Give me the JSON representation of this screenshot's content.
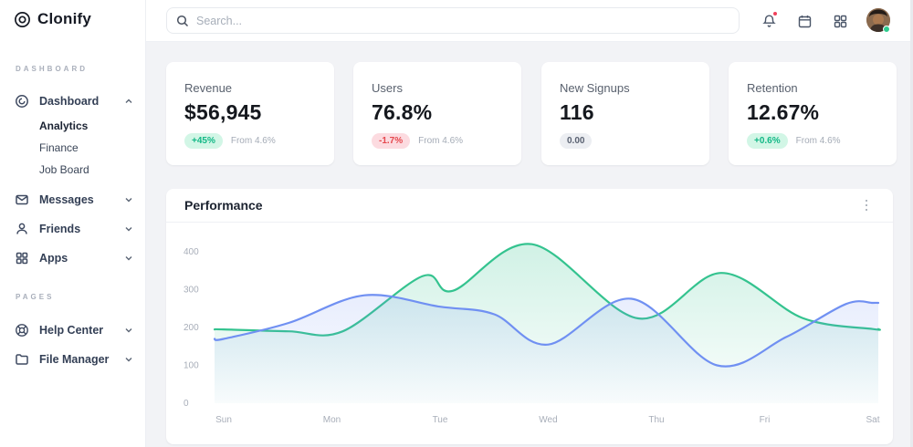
{
  "brand": {
    "name": "Clonify",
    "logo_icon": "clonify-logo-icon"
  },
  "topbar": {
    "search_placeholder": "Search...",
    "search_icon": "search-icon",
    "icons": [
      "bell-icon",
      "calendar-icon",
      "apps-grid-icon"
    ],
    "notification_dot_color": "#f0405a",
    "avatar_status_color": "#2ecc8f"
  },
  "sidebar": {
    "sections": [
      {
        "label": "DASHBOARD",
        "items": [
          {
            "label": "Dashboard",
            "icon": "dashboard-icon",
            "expanded": true,
            "children": [
              {
                "label": "Analytics",
                "active": true
              },
              {
                "label": "Finance",
                "active": false
              },
              {
                "label": "Job Board",
                "active": false
              }
            ]
          },
          {
            "label": "Messages",
            "icon": "messages-icon"
          },
          {
            "label": "Friends",
            "icon": "friends-icon"
          },
          {
            "label": "Apps",
            "icon": "apps-icon"
          }
        ]
      },
      {
        "label": "PAGES",
        "items": [
          {
            "label": "Help Center",
            "icon": "help-center-icon"
          },
          {
            "label": "File Manager",
            "icon": "folder-icon"
          }
        ]
      }
    ]
  },
  "cards": [
    {
      "title": "Revenue",
      "value": "$56,945",
      "badge": "+45%",
      "badge_type": "up",
      "note": "From 4.6%"
    },
    {
      "title": "Users",
      "value": "76.8%",
      "badge": "-1.7%",
      "badge_type": "down",
      "note": "From 4.6%"
    },
    {
      "title": "New Signups",
      "value": "116",
      "badge": "0.00",
      "badge_type": "neutral",
      "note": ""
    },
    {
      "title": "Retention",
      "value": "12.67%",
      "badge": "+0.6%",
      "badge_type": "up",
      "note": "From 4.6%"
    }
  ],
  "chart_data": {
    "type": "area",
    "title": "Performance",
    "x_labels": [
      "Sun",
      "Mon",
      "Tue",
      "Wed",
      "Thu",
      "Fri",
      "Sat"
    ],
    "y_ticks": [
      0,
      100,
      200,
      300,
      400
    ],
    "ylim": [
      0,
      400
    ],
    "grid": false,
    "legend": "none",
    "axis_label_color": "#a8aeb9",
    "series": [
      {
        "name": "green-series",
        "color": "#34c38f",
        "points": [
          [
            0,
            195
          ],
          [
            0.6,
            190
          ],
          [
            1.1,
            190
          ],
          [
            1.84,
            336
          ],
          [
            2.12,
            297
          ],
          [
            2.85,
            420
          ],
          [
            3.83,
            224
          ],
          [
            4.6,
            344
          ],
          [
            5.35,
            225
          ],
          [
            6,
            196
          ]
        ]
      },
      {
        "name": "blue-series",
        "color": "#7090f2",
        "points": [
          [
            0,
            170
          ],
          [
            0.6,
            212
          ],
          [
            1.3,
            285
          ],
          [
            2,
            255
          ],
          [
            2.5,
            235
          ],
          [
            3,
            155
          ],
          [
            3.77,
            276
          ],
          [
            4.56,
            100
          ],
          [
            5.2,
            175
          ],
          [
            5.75,
            262
          ],
          [
            6,
            265
          ]
        ]
      }
    ]
  }
}
